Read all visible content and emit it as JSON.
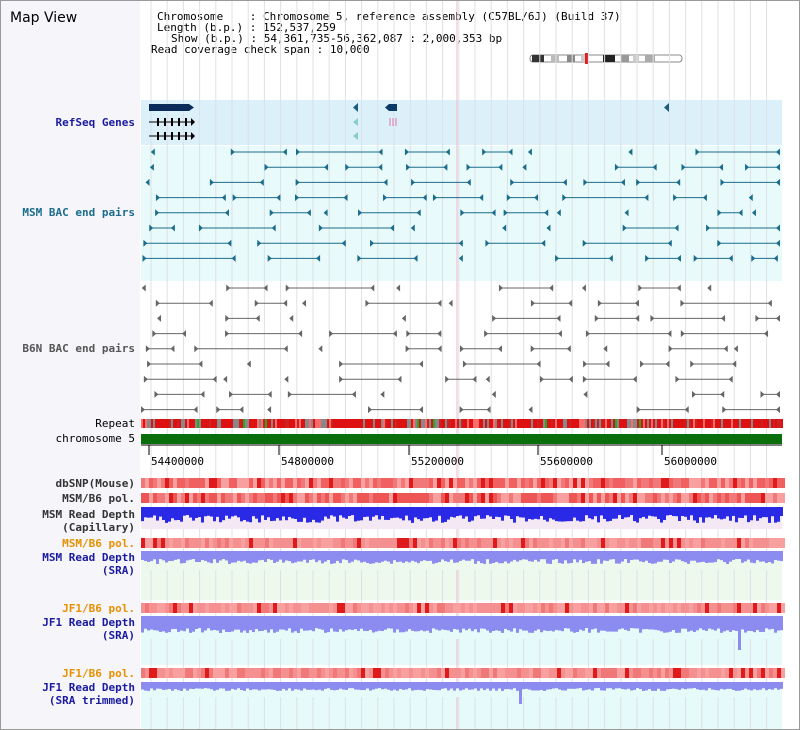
{
  "page": {
    "title": "Map View"
  },
  "header": {
    "chromosome_label": "Chromosome",
    "chromosome_value": "Chromosome 5, reference assembly (C57BL/6J) (Build 37)",
    "length_label": "Length (b.p.)",
    "length_value": "152,537,259",
    "show_label": "Show (b.p.)",
    "show_value": "54,361,735-56,362,087 : 2,000,353 bp",
    "coverage_label": "Read coverage check span",
    "coverage_value": "10,000"
  },
  "tracks": {
    "refseq": "RefSeq Genes",
    "msm_bac": "MSM BAC end pairs",
    "b6n_bac": "B6N BAC end pairs",
    "repeat": "Repeat",
    "chromosome": "chromosome 5",
    "dbsnp": "dbSNP(Mouse)",
    "msm_b6_pol_1": "MSM/B6 pol.",
    "msm_read_depth_cap_1": "MSM Read Depth",
    "msm_read_depth_cap_2": "(Capillary)",
    "msm_b6_pol_2": "MSM/B6 pol.",
    "msm_read_depth_sra_1": "MSM Read Depth",
    "msm_read_depth_sra_2": "(SRA)",
    "jf1_b6_pol_1": "JF1/B6 pol.",
    "jf1_read_depth_sra_1": "JF1 Read Depth",
    "jf1_read_depth_sra_2": "(SRA)",
    "jf1_b6_pol_2": "JF1/B6 pol.",
    "jf1_read_depth_trim_1": "JF1 Read Depth",
    "jf1_read_depth_trim_2": "(SRA trimmed)"
  },
  "axis": {
    "ticks": [
      "54400000",
      "54800000",
      "55200000",
      "55600000",
      "56000000"
    ]
  },
  "colors": {
    "refseq_bg": "#dcf0fa",
    "bac_bg": "#e8fafa",
    "msm_color": "#1c6c8c",
    "b6n_color": "#666666",
    "chromosome": "#0a6e0a",
    "repeat": "#dd1111",
    "snp": "#f06060",
    "depth_msm_cap": "#2a2ae6",
    "depth_sra": "#8c8cf0",
    "label_navy": "#1a1aa0",
    "label_orange": "#e89000"
  }
}
